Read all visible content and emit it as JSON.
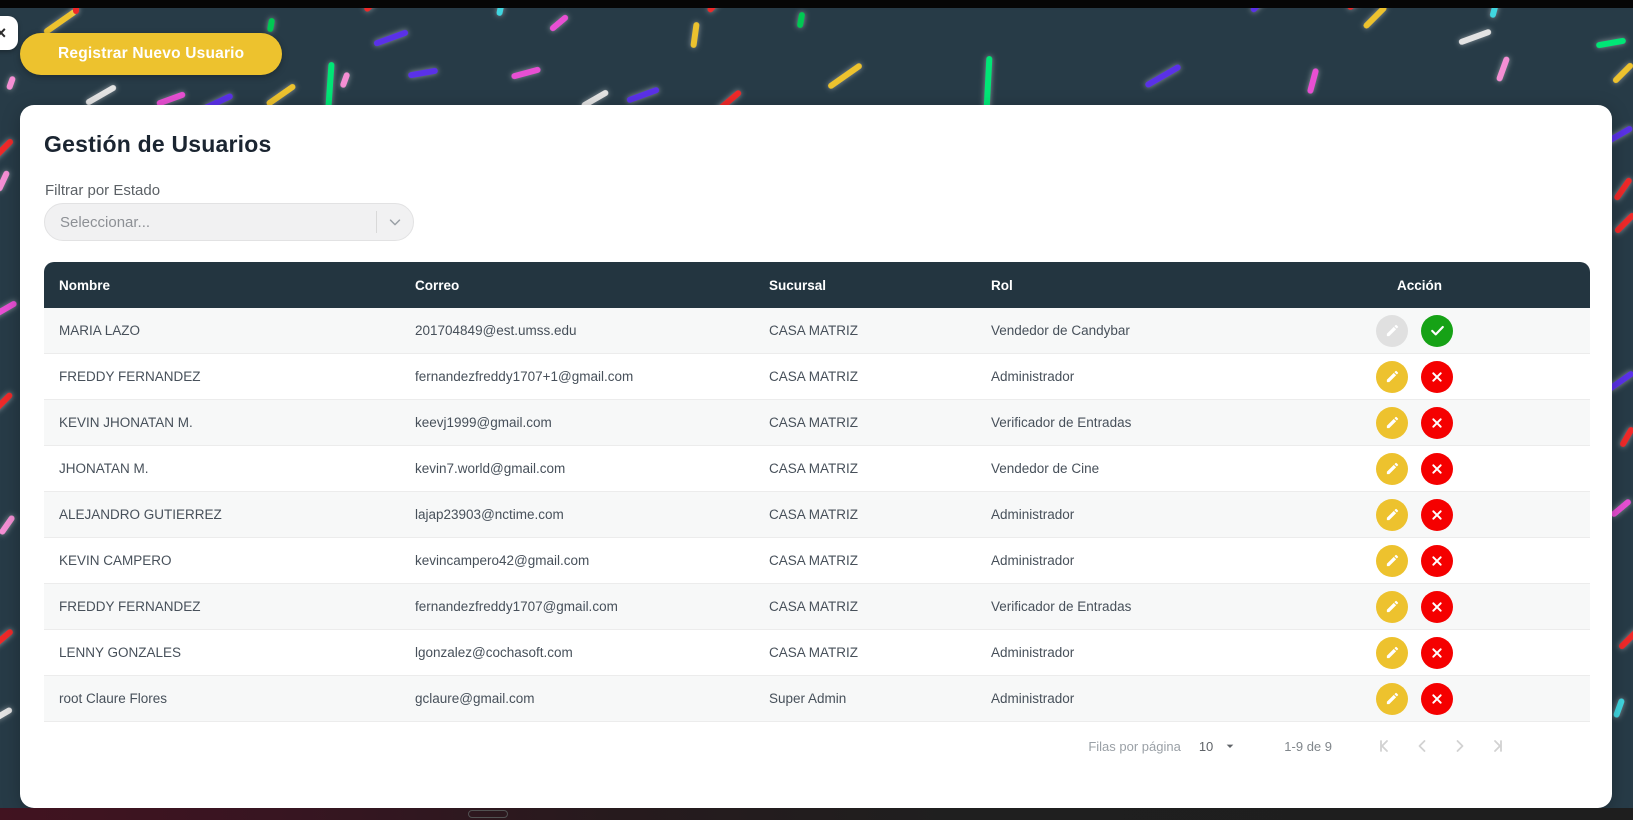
{
  "header": {
    "register_button_label": "Registrar Nuevo Usuario",
    "drawer_toggle_glyph": "×"
  },
  "page": {
    "title": "Gestión de Usuarios",
    "filter_label": "Filtrar por Estado",
    "filter_placeholder": "Seleccionar..."
  },
  "table": {
    "columns": [
      "Nombre",
      "Correo",
      "Sucursal",
      "Rol",
      "Acción"
    ],
    "rows": [
      {
        "nombre": "MARIA LAZO",
        "correo": "201704849@est.umss.edu",
        "sucursal": "CASA MATRIZ",
        "rol": "Vendedor de Candybar",
        "actions": [
          "edit-disabled",
          "activate"
        ]
      },
      {
        "nombre": "FREDDY FERNANDEZ",
        "correo": "fernandezfreddy1707+1@gmail.com",
        "sucursal": "CASA MATRIZ",
        "rol": "Administrador",
        "actions": [
          "edit",
          "deactivate"
        ]
      },
      {
        "nombre": "KEVIN JHONATAN M.",
        "correo": "keevj1999@gmail.com",
        "sucursal": "CASA MATRIZ",
        "rol": "Verificador de Entradas",
        "actions": [
          "edit",
          "deactivate"
        ]
      },
      {
        "nombre": "JHONATAN M.",
        "correo": "kevin7.world@gmail.com",
        "sucursal": "CASA MATRIZ",
        "rol": "Vendedor de Cine",
        "actions": [
          "edit",
          "deactivate"
        ]
      },
      {
        "nombre": "ALEJANDRO GUTIERREZ",
        "correo": "lajap23903@nctime.com",
        "sucursal": "CASA MATRIZ",
        "rol": "Administrador",
        "actions": [
          "edit",
          "deactivate"
        ]
      },
      {
        "nombre": "KEVIN CAMPERO",
        "correo": "kevincampero42@gmail.com",
        "sucursal": "CASA MATRIZ",
        "rol": "Administrador",
        "actions": [
          "edit",
          "deactivate"
        ]
      },
      {
        "nombre": "FREDDY FERNANDEZ",
        "correo": "fernandezfreddy1707@gmail.com",
        "sucursal": "CASA MATRIZ",
        "rol": "Verificador de Entradas",
        "actions": [
          "edit",
          "deactivate"
        ]
      },
      {
        "nombre": "LENNY GONZALES",
        "correo": "lgonzalez@cochasoft.com",
        "sucursal": "CASA MATRIZ",
        "rol": "Administrador",
        "actions": [
          "edit",
          "deactivate"
        ]
      },
      {
        "nombre": "root Claure Flores",
        "correo": "gclaure@gmail.com",
        "sucursal": "Super Admin",
        "rol": "Administrador",
        "actions": [
          "edit",
          "deactivate"
        ]
      }
    ]
  },
  "pagination": {
    "rows_per_page_label": "Filas por página",
    "rows_per_page_value": "10",
    "range_label": "1-9 de 9"
  },
  "icons": {
    "drawer_toggle": "close-icon",
    "filter_chevron": "chevron-down-icon",
    "edit": "pencil-icon",
    "activate": "check-icon",
    "deactivate": "x-icon",
    "rows_caret": "caret-down-icon",
    "pager": [
      "first-page-icon",
      "chevron-left-icon",
      "chevron-right-icon",
      "last-page-icon"
    ]
  },
  "colors": {
    "accent_yellow": "#edc22e",
    "success_green": "#16a216",
    "danger_red": "#f50000",
    "table_header_dark": "#233540",
    "background_dark": "#273b47"
  }
}
